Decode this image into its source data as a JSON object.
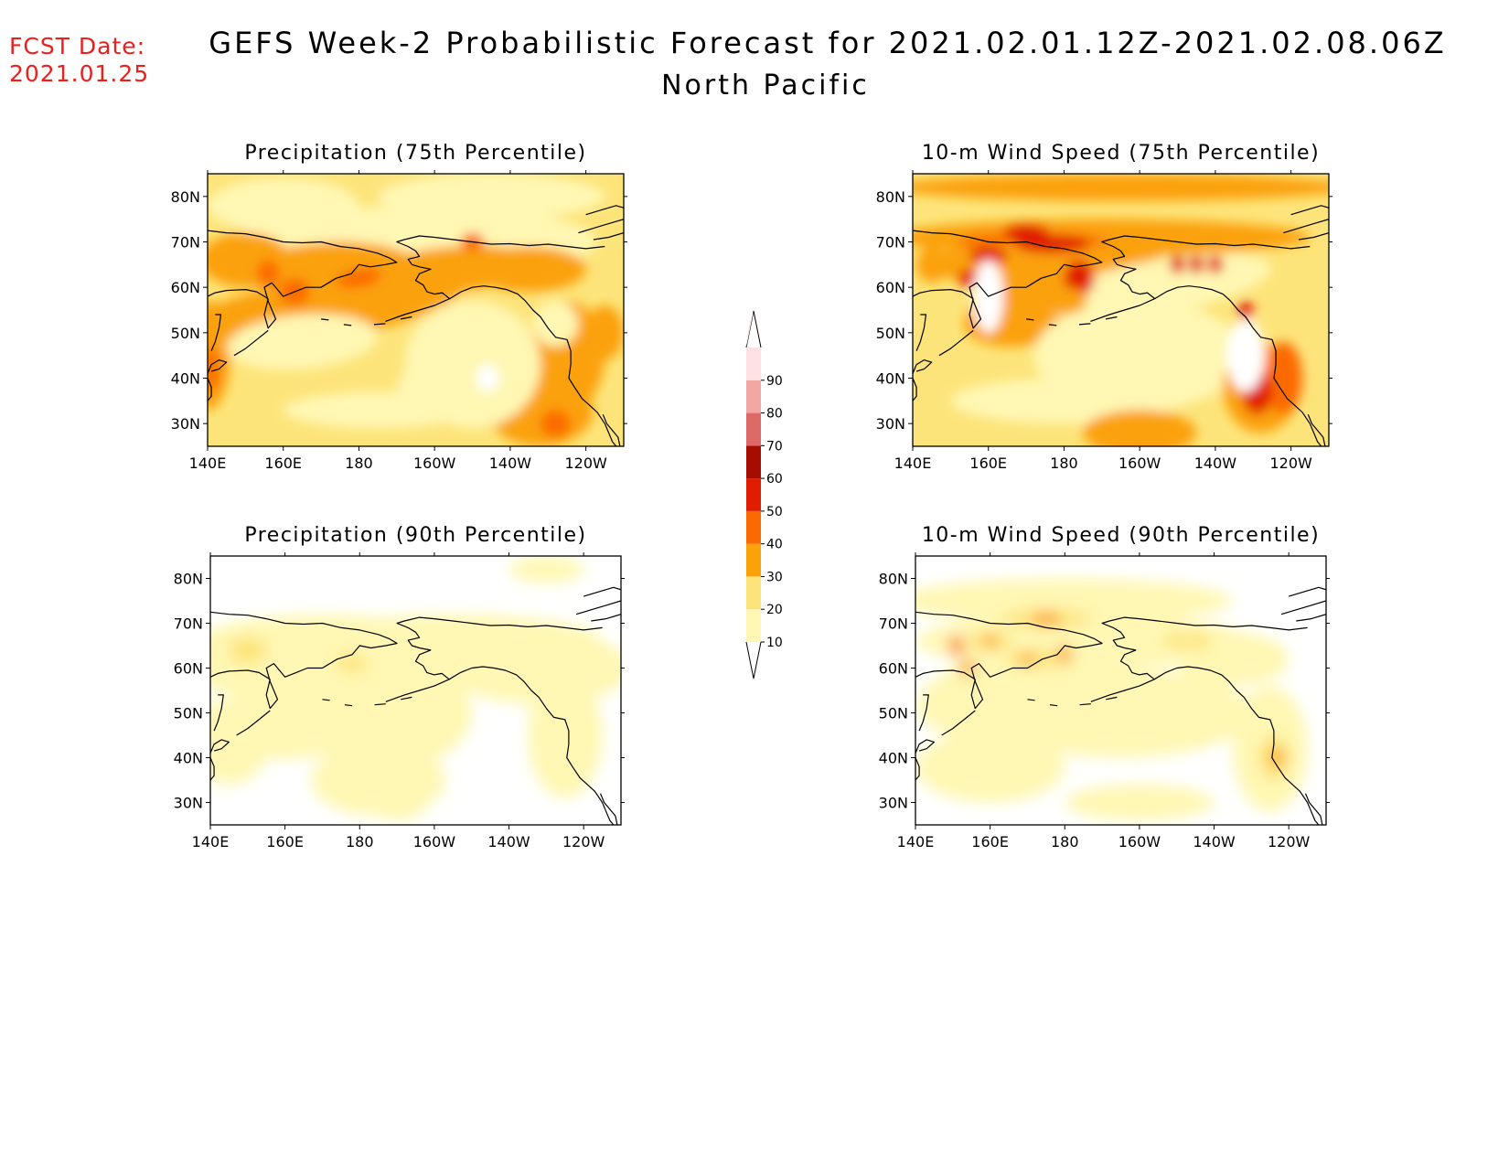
{
  "fcst": {
    "line1": "FCST Date:",
    "line2": "2021.01.25"
  },
  "title": "GEFS Week-2 Probabilistic Forecast for 2021.02.01.12Z-2021.02.08.06Z",
  "subtitle": "North Pacific",
  "axes": {
    "lon_labels": [
      "140E",
      "160E",
      "180",
      "160W",
      "140W",
      "120W"
    ],
    "lat_labels": [
      "80N",
      "70N",
      "60N",
      "50N",
      "40N",
      "30N"
    ]
  },
  "panels": [
    {
      "id": "precip75",
      "title": "Precipitation (75th Percentile)",
      "intensity": "high",
      "variable": "precipitation"
    },
    {
      "id": "wind75",
      "title": "10-m Wind Speed (75th Percentile)",
      "intensity": "high",
      "variable": "wind"
    },
    {
      "id": "precip90",
      "title": "Precipitation (90th Percentile)",
      "intensity": "low",
      "variable": "precipitation"
    },
    {
      "id": "wind90",
      "title": "10-m Wind Speed (90th Percentile)",
      "intensity": "low",
      "variable": "wind"
    }
  ],
  "colorbar": {
    "levels": [
      "10",
      "20",
      "30",
      "40",
      "50",
      "60",
      "70",
      "80",
      "90"
    ],
    "colors": [
      "#fff7b3",
      "#fde47a",
      "#fba10a",
      "#fb6a00",
      "#e11d00",
      "#a60d00",
      "#de6a68",
      "#f3a7a4",
      "#fde1e3"
    ]
  }
}
